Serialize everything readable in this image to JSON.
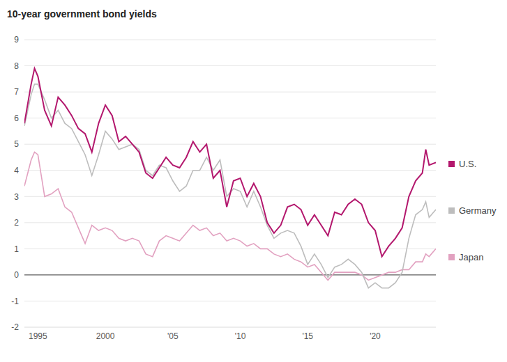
{
  "chart_data": {
    "type": "line",
    "title": "10-year government bond yields",
    "x": [
      1994.0,
      1994.5,
      1994.75,
      1995.0,
      1995.5,
      1996.0,
      1996.5,
      1997.0,
      1997.5,
      1998.0,
      1998.5,
      1999.0,
      1999.5,
      2000.0,
      2000.5,
      2001.0,
      2001.5,
      2002.0,
      2002.5,
      2003.0,
      2003.5,
      2004.0,
      2004.5,
      2005.0,
      2005.5,
      2006.0,
      2006.5,
      2007.0,
      2007.5,
      2008.0,
      2008.5,
      2009.0,
      2009.5,
      2010.0,
      2010.5,
      2011.0,
      2011.5,
      2012.0,
      2012.5,
      2013.0,
      2013.5,
      2014.0,
      2014.5,
      2015.0,
      2015.5,
      2016.0,
      2016.5,
      2017.0,
      2017.5,
      2018.0,
      2018.5,
      2019.0,
      2019.5,
      2020.0,
      2020.5,
      2021.0,
      2021.5,
      2022.0,
      2022.5,
      2023.0,
      2023.5,
      2023.75,
      2024.0,
      2024.5
    ],
    "series": [
      {
        "name": "U.S.",
        "color": "#b3176d",
        "values": [
          5.8,
          7.3,
          7.9,
          7.6,
          6.3,
          5.7,
          6.8,
          6.5,
          6.1,
          5.6,
          5.4,
          4.7,
          5.8,
          6.5,
          6.1,
          5.1,
          5.3,
          5.0,
          4.7,
          3.9,
          3.7,
          4.1,
          4.5,
          4.2,
          4.1,
          4.5,
          5.1,
          4.7,
          5.0,
          3.7,
          4.0,
          2.6,
          3.6,
          3.7,
          3.0,
          3.5,
          3.0,
          2.0,
          1.6,
          1.9,
          2.6,
          2.7,
          2.5,
          1.9,
          2.3,
          1.9,
          1.5,
          2.4,
          2.3,
          2.7,
          2.9,
          2.7,
          2.0,
          1.7,
          0.7,
          1.1,
          1.4,
          1.8,
          3.0,
          3.6,
          3.9,
          4.8,
          4.2,
          4.3
        ]
      },
      {
        "name": "Germany",
        "color": "#bdbdbd",
        "values": [
          5.7,
          6.9,
          7.3,
          7.3,
          6.7,
          6.0,
          6.3,
          5.8,
          5.6,
          5.1,
          4.6,
          3.8,
          4.6,
          5.5,
          5.2,
          4.8,
          4.9,
          5.0,
          4.8,
          4.0,
          3.8,
          4.2,
          4.1,
          3.6,
          3.2,
          3.4,
          4.0,
          4.0,
          4.5,
          4.0,
          4.4,
          3.0,
          3.3,
          3.2,
          2.6,
          3.2,
          2.6,
          1.9,
          1.4,
          1.6,
          1.7,
          1.6,
          1.1,
          0.4,
          0.8,
          0.4,
          -0.1,
          0.3,
          0.4,
          0.6,
          0.4,
          0.1,
          -0.5,
          -0.3,
          -0.5,
          -0.5,
          -0.3,
          0.1,
          1.4,
          2.3,
          2.5,
          2.8,
          2.2,
          2.5
        ]
      },
      {
        "name": "Japan",
        "color": "#e2a1c0",
        "values": [
          3.4,
          4.4,
          4.7,
          4.6,
          3.0,
          3.1,
          3.3,
          2.6,
          2.4,
          1.8,
          1.2,
          1.9,
          1.7,
          1.8,
          1.7,
          1.4,
          1.3,
          1.4,
          1.3,
          0.8,
          0.7,
          1.3,
          1.5,
          1.4,
          1.3,
          1.6,
          1.9,
          1.7,
          1.8,
          1.5,
          1.6,
          1.3,
          1.4,
          1.3,
          1.1,
          1.2,
          1.0,
          1.0,
          0.8,
          0.7,
          0.8,
          0.6,
          0.5,
          0.3,
          0.4,
          0.1,
          -0.2,
          0.1,
          0.1,
          0.1,
          0.1,
          0.0,
          -0.2,
          -0.1,
          0.0,
          0.1,
          0.1,
          0.2,
          0.2,
          0.5,
          0.5,
          0.8,
          0.7,
          1.0
        ]
      }
    ],
    "xlim": [
      1994.0,
      2024.5
    ],
    "xticks": [
      1995,
      2000,
      {
        "value": 2005,
        "label": "'05"
      },
      {
        "value": 2010,
        "label": "'10"
      },
      {
        "value": 2015,
        "label": "'15"
      },
      {
        "value": 2020,
        "label": "'20"
      }
    ],
    "ylim": [
      -2,
      9
    ],
    "yticks": [
      -2,
      -1,
      0,
      1,
      2,
      3,
      4,
      5,
      6,
      7,
      8,
      9
    ],
    "grid": true,
    "legend": "right"
  }
}
